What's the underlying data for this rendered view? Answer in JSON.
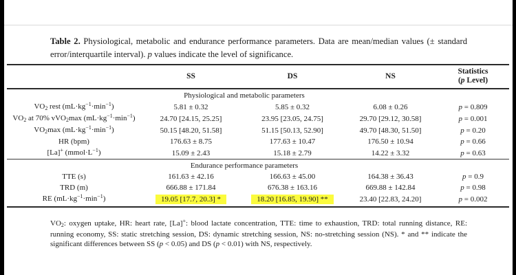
{
  "page": {
    "caption_label": "Table 2.",
    "caption_text": "Physiological, metabolic and endurance performance parameters. Data are mean/median values (± standard error/interquartile interval). ~p~ values indicate the level of significance.",
    "footnote": "VO_2_: oxygen uptake, HR: heart rate, [La]^+^: blood lactate concentration, TTE: time to exhaustion, TRD: total running distance, RE: running economy, SS: static stretching session, DS: dynamic stretching session, NS: no-stretching session (NS). * and ** indicate the significant differences between SS (~p~ < 0.05) and DS (~p~ < 0.01) with NS, respectively.",
    "highlight_color": "#fbfb3d"
  },
  "table": {
    "header": {
      "param": "",
      "ss": "SS",
      "ds": "DS",
      "ns": "NS",
      "stats_line1": "Statistics",
      "stats_line2": "(~p~ Level)"
    },
    "section1": {
      "title": "Physiological and metabolic parameters",
      "rows": [
        {
          "label": "VO_2_ rest (mL·kg^−1^·min^−1^)",
          "ss": "5.81 ± 0.32",
          "ds": "5.85 ± 0.32",
          "ns": "6.08 ± 0.26",
          "p": "~p~ = 0.809"
        },
        {
          "label": "VO_2_ at 70% vVO_2_max (mL·kg^−1^·min^−1^)",
          "ss": "24.70 [24.15, 25.25]",
          "ds": "23.95 [23.05, 24.75]",
          "ns": "29.70 [29.12, 30.58]",
          "p": "~p~ = 0.001"
        },
        {
          "label": "VO_2_max (mL·kg^−1^·min^−1^)",
          "ss": "50.15 [48.20, 51.58]",
          "ds": "51.15 [50.13, 52.90]",
          "ns": "49.70 [48.30, 51.50]",
          "p": "~p~ = 0.20"
        },
        {
          "label": "HR (bpm)",
          "ss": "176.63 ± 8.75",
          "ds": "177.63 ± 10.47",
          "ns": "176.50 ± 10.94",
          "p": "~p~ = 0.66"
        },
        {
          "label": "[La]^+^ (mmol·L^−1^)",
          "ss": "15.09 ± 2.43",
          "ds": "15.18 ± 2.79",
          "ns": "14.22 ± 3.32",
          "p": "~p~ = 0.63"
        }
      ]
    },
    "section2": {
      "title": "Endurance performance parameters",
      "rows": [
        {
          "label": "TTE (s)",
          "ss": "161.63 ± 42.16",
          "ds": "166.63 ± 45.00",
          "ns": "164.38 ± 36.43",
          "p": "~p~ = 0.9"
        },
        {
          "label": "TRD (m)",
          "ss": "666.88 ± 171.84",
          "ds": "676.38 ± 163.16",
          "ns": "669.88 ± 142.84",
          "p": "~p~ = 0.98"
        },
        {
          "label": "RE (mL·kg^−1^·min^−1^)",
          "ss": "19.05 [17.7, 20.3] *",
          "ds": "18.20 [16.85, 19.90] **",
          "ns": "23.40 [22.83, 24.20]",
          "p": "~p~ = 0.002",
          "ss_highlight": true,
          "ds_highlight": true
        }
      ]
    }
  }
}
